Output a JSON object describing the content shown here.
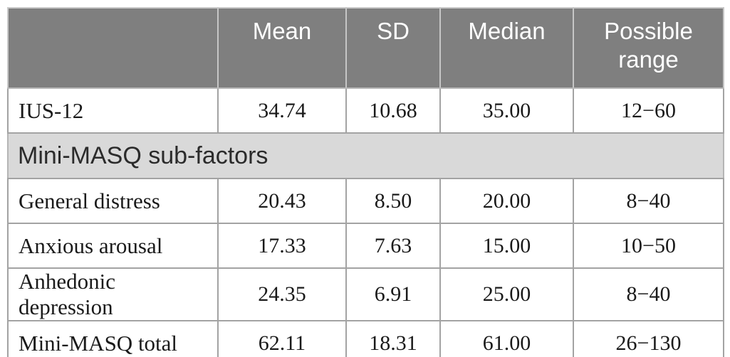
{
  "table": {
    "header": {
      "col0": "",
      "col1": "Mean",
      "col2": "SD",
      "col3": "Median",
      "col4": "Possible range"
    },
    "section_header": "Mini-MASQ sub-factors",
    "rows": [
      {
        "label": "IUS-12",
        "mean": "34.74",
        "sd": "10.68",
        "median": "35.00",
        "range": "12−60"
      },
      {
        "label": "General distress",
        "mean": "20.43",
        "sd": "8.50",
        "median": "20.00",
        "range": "8−40"
      },
      {
        "label": "Anxious arousal",
        "mean": "17.33",
        "sd": "7.63",
        "median": "15.00",
        "range": "10−50"
      },
      {
        "label": "Anhedonic depression",
        "mean": "24.35",
        "sd": "6.91",
        "median": "25.00",
        "range": "8−40"
      },
      {
        "label": "Mini-MASQ total",
        "mean": "62.11",
        "sd": "18.31",
        "median": "61.00",
        "range": "26−130"
      }
    ],
    "colors": {
      "header_bg": "#7f7f7f",
      "header_text": "#ffffff",
      "header_divider": "#c6c6c6",
      "section_bg": "#d9d9d9",
      "grid_line": "#a3a3a3",
      "body_text": "#1a1a1a"
    }
  }
}
